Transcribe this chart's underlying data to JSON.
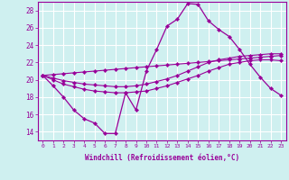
{
  "xlabel": "Windchill (Refroidissement éolien,°C)",
  "background_color": "#cff0f0",
  "grid_color": "#ffffff",
  "line_color": "#990099",
  "xlim": [
    -0.5,
    23.5
  ],
  "ylim": [
    13,
    29
  ],
  "yticks": [
    14,
    16,
    18,
    20,
    22,
    24,
    26,
    28
  ],
  "xticks": [
    0,
    1,
    2,
    3,
    4,
    5,
    6,
    7,
    8,
    9,
    10,
    11,
    12,
    13,
    14,
    15,
    16,
    17,
    18,
    19,
    20,
    21,
    22,
    23
  ],
  "series": {
    "main": [
      20.5,
      19.3,
      18.0,
      16.5,
      15.5,
      15.0,
      13.8,
      13.8,
      18.5,
      16.5,
      21.0,
      23.5,
      26.2,
      27.0,
      28.8,
      28.7,
      26.8,
      25.8,
      25.0,
      23.5,
      21.8,
      20.3,
      19.0,
      18.2
    ],
    "line1": [
      20.5,
      20.0,
      19.5,
      19.2,
      18.9,
      18.7,
      18.6,
      18.5,
      18.5,
      18.6,
      18.7,
      19.0,
      19.3,
      19.7,
      20.1,
      20.5,
      21.0,
      21.4,
      21.8,
      22.0,
      22.2,
      22.3,
      22.3,
      22.2
    ],
    "line2": [
      20.5,
      20.2,
      19.9,
      19.7,
      19.5,
      19.4,
      19.3,
      19.2,
      19.2,
      19.3,
      19.5,
      19.8,
      20.1,
      20.5,
      21.0,
      21.5,
      22.0,
      22.3,
      22.5,
      22.7,
      22.8,
      22.9,
      23.0,
      23.0
    ],
    "line3": [
      20.5,
      20.6,
      20.7,
      20.8,
      20.9,
      21.0,
      21.1,
      21.2,
      21.3,
      21.4,
      21.5,
      21.6,
      21.7,
      21.8,
      21.9,
      22.0,
      22.1,
      22.2,
      22.3,
      22.4,
      22.5,
      22.6,
      22.7,
      22.8
    ]
  }
}
